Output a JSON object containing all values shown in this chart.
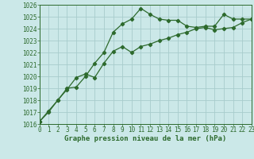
{
  "xlabel": "Graphe pression niveau de la mer (hPa)",
  "background_color": "#cbe8e8",
  "grid_color": "#a8cccc",
  "line_color": "#2d6a2d",
  "ylim": [
    1016,
    1026
  ],
  "xlim": [
    0,
    23
  ],
  "yticks": [
    1016,
    1017,
    1018,
    1019,
    1020,
    1021,
    1022,
    1023,
    1024,
    1025,
    1026
  ],
  "xticks": [
    0,
    1,
    2,
    3,
    4,
    5,
    6,
    7,
    8,
    9,
    10,
    11,
    12,
    13,
    14,
    15,
    16,
    17,
    18,
    19,
    20,
    21,
    22,
    23
  ],
  "series1_x": [
    0,
    1,
    2,
    3,
    4,
    5,
    6,
    7,
    8,
    9,
    10,
    11,
    12,
    13,
    14,
    15,
    16,
    17,
    18,
    19,
    20,
    21,
    22,
    23
  ],
  "series1_y": [
    1016.2,
    1017.1,
    1018.0,
    1019.0,
    1019.1,
    1020.0,
    1021.1,
    1022.0,
    1023.7,
    1024.4,
    1024.8,
    1025.7,
    1025.2,
    1024.8,
    1024.7,
    1024.7,
    1024.2,
    1024.1,
    1024.2,
    1024.2,
    1025.2,
    1024.8,
    1024.8,
    1024.8
  ],
  "series2_x": [
    0,
    1,
    2,
    3,
    4,
    5,
    6,
    7,
    8,
    9,
    10,
    11,
    12,
    13,
    14,
    15,
    16,
    17,
    18,
    19,
    20,
    21,
    22,
    23
  ],
  "series2_y": [
    1016.2,
    1017.0,
    1018.0,
    1018.9,
    1019.9,
    1020.2,
    1019.9,
    1021.1,
    1022.1,
    1022.5,
    1022.0,
    1022.5,
    1022.7,
    1023.0,
    1023.2,
    1023.5,
    1023.7,
    1024.0,
    1024.1,
    1023.9,
    1024.0,
    1024.1,
    1024.5,
    1024.8
  ],
  "tick_fontsize": 5.5,
  "label_fontsize": 6.5
}
